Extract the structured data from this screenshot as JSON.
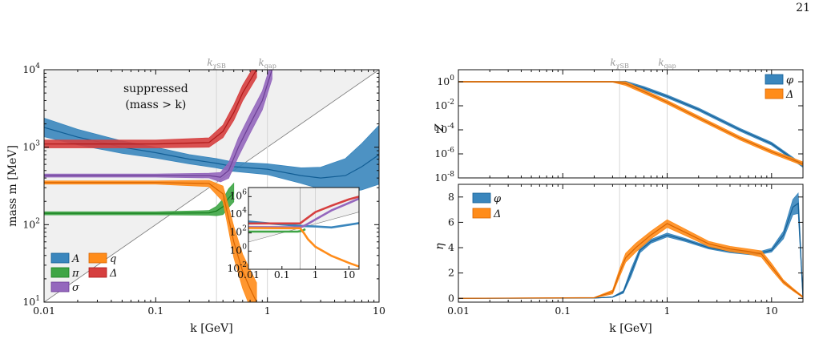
{
  "page": {
    "number": "21"
  },
  "colors": {
    "A": "#3a86bd",
    "pi": "#3ea545",
    "sigma": "#9467bd",
    "q": "#ff8c1a",
    "Delta": "#d63f3f",
    "phi": "#3a86bd",
    "suppressed_region": "#f0f0f0",
    "ref_line": "#c8c8c8",
    "scale_line": "#d6d6d6"
  },
  "chart_data": [
    {
      "id": "mass-panel",
      "type": "line",
      "xscale": "log",
      "yscale": "log",
      "xlim": [
        0.01,
        10
      ],
      "ylim": [
        10,
        10000
      ],
      "xlabel": "k [GeV]",
      "ylabel": "mass m [MeV]",
      "xticks": [
        "0.01",
        "0.1",
        "1",
        "10"
      ],
      "yticks": [
        "10^1",
        "10^2",
        "10^3",
        "10^4"
      ],
      "scale_markers": [
        {
          "label": "k_χSB",
          "x": 0.35
        },
        {
          "label": "k_gap",
          "x": 1.0
        }
      ],
      "annotation": {
        "line1": "suppressed",
        "line2": "(mass > k)"
      },
      "shaded_region": "mass > k",
      "legend": {
        "location": "lower-left",
        "entries": [
          "A",
          "π",
          "σ",
          "q",
          "Δ"
        ]
      },
      "series": [
        {
          "name": "A",
          "color_key": "A",
          "x": [
            0.01,
            0.02,
            0.05,
            0.1,
            0.2,
            0.35,
            0.5,
            1.0,
            2.0,
            3.0,
            5.0,
            7.0,
            10.0
          ],
          "y": [
            1800,
            1350,
            1000,
            850,
            700,
            620,
            560,
            520,
            430,
            400,
            430,
            560,
            800
          ],
          "yerr": [
            0.12,
            0.1,
            0.08,
            0.07,
            0.06,
            0.06,
            0.06,
            0.07,
            0.1,
            0.14,
            0.22,
            0.3,
            0.38
          ]
        },
        {
          "name": "π",
          "color_key": "pi",
          "x": [
            0.01,
            0.1,
            0.3,
            0.35,
            0.4,
            0.45,
            0.5
          ],
          "y": [
            140,
            140,
            142,
            150,
            170,
            220,
            260
          ],
          "yerr": [
            0.02,
            0.02,
            0.03,
            0.06,
            0.1,
            0.12,
            0.12
          ]
        },
        {
          "name": "σ",
          "color_key": "sigma",
          "x": [
            0.01,
            0.1,
            0.3,
            0.38,
            0.45,
            0.55,
            0.7,
            0.9,
            1.1
          ],
          "y": [
            430,
            430,
            430,
            410,
            500,
            1000,
            2000,
            4000,
            10000
          ],
          "yerr": [
            0.02,
            0.02,
            0.03,
            0.06,
            0.1,
            0.12,
            0.12,
            0.12,
            0.12
          ]
        },
        {
          "name": "q",
          "color_key": "q",
          "x": [
            0.01,
            0.1,
            0.3,
            0.4,
            0.45,
            0.5,
            0.6,
            0.7,
            0.8
          ],
          "y": [
            350,
            350,
            340,
            250,
            120,
            60,
            25,
            15,
            10
          ],
          "yerr": [
            0.02,
            0.02,
            0.04,
            0.1,
            0.15,
            0.2,
            0.22,
            0.24,
            0.25
          ]
        },
        {
          "name": "Δ",
          "color_key": "Delta",
          "x": [
            0.01,
            0.1,
            0.3,
            0.4,
            0.5,
            0.6,
            0.8
          ],
          "y": [
            1100,
            1100,
            1150,
            1600,
            2800,
            5000,
            10000
          ],
          "yerr": [
            0.05,
            0.05,
            0.06,
            0.08,
            0.1,
            0.1,
            0.1
          ]
        }
      ]
    },
    {
      "id": "mass-inset",
      "type": "line",
      "xscale": "log",
      "yscale": "log",
      "xlim": [
        0.01,
        20
      ],
      "ylim": [
        0.01,
        10000000
      ],
      "xticks": [
        "0.01",
        "0.1",
        "1",
        "10"
      ],
      "yticks": [
        "10^-2",
        "10^0",
        "10^2",
        "10^4",
        "10^6"
      ],
      "series": [
        {
          "name": "A",
          "color_key": "A",
          "x": [
            0.01,
            0.1,
            0.5,
            1,
            3,
            10,
            20
          ],
          "y": [
            1800,
            850,
            560,
            520,
            400,
            800,
            1200
          ]
        },
        {
          "name": "π",
          "color_key": "pi",
          "x": [
            0.01,
            0.3,
            0.4,
            0.5
          ],
          "y": [
            140,
            142,
            170,
            260
          ]
        },
        {
          "name": "σ",
          "color_key": "sigma",
          "x": [
            0.01,
            0.35,
            0.5,
            1,
            3,
            10,
            20
          ],
          "y": [
            430,
            420,
            700,
            3000,
            30000,
            200000,
            600000
          ]
        },
        {
          "name": "q",
          "color_key": "q",
          "x": [
            0.01,
            0.35,
            0.45,
            0.6,
            1,
            3,
            10,
            20
          ],
          "y": [
            350,
            330,
            100,
            20,
            3,
            0.3,
            0.05,
            0.02
          ]
        },
        {
          "name": "Δ",
          "color_key": "Delta",
          "x": [
            0.01,
            0.35,
            0.6,
            1,
            3,
            10,
            20
          ],
          "y": [
            1100,
            1150,
            5000,
            20000,
            100000,
            500000,
            1000000
          ]
        }
      ]
    },
    {
      "id": "Z-panel",
      "type": "line",
      "xscale": "log",
      "yscale": "log",
      "xlim": [
        0.01,
        20
      ],
      "ylim": [
        1e-08,
        10
      ],
      "ylabel": "Z",
      "xticks": [],
      "yticks": [
        "10^0",
        "10^-2",
        "10^-4",
        "10^-6",
        "10^-8"
      ],
      "scale_markers": [
        {
          "label": "k_χSB",
          "x": 0.35
        },
        {
          "label": "k_gap",
          "x": 1.0
        }
      ],
      "legend": {
        "location": "top-right",
        "entries": [
          "φ",
          "Δ"
        ]
      },
      "series": [
        {
          "name": "φ",
          "color_key": "phi",
          "x": [
            0.01,
            0.1,
            0.3,
            0.4,
            0.6,
            1,
            2,
            5,
            10,
            20
          ],
          "y": [
            1,
            1,
            1,
            0.85,
            0.3,
            0.06,
            0.005,
            0.0001,
            7e-06,
            1e-07
          ]
        },
        {
          "name": "Δ",
          "color_key": "q",
          "x": [
            0.01,
            0.1,
            0.3,
            0.4,
            0.6,
            1,
            2,
            5,
            10,
            20
          ],
          "y": [
            1,
            1,
            1,
            0.7,
            0.15,
            0.02,
            0.001,
            2e-05,
            1.5e-06,
            1.5e-07
          ]
        }
      ]
    },
    {
      "id": "eta-panel",
      "type": "line",
      "xscale": "log",
      "yscale": "linear",
      "xlim": [
        0.01,
        20
      ],
      "ylim": [
        -0.3,
        9
      ],
      "xlabel": "k [GeV]",
      "ylabel": "η",
      "xticks": [
        "0.01",
        "0.1",
        "1",
        "10"
      ],
      "yticks": [
        "0",
        "2",
        "4",
        "6",
        "8"
      ],
      "legend": {
        "location": "top-left",
        "entries": [
          "φ",
          "Δ"
        ]
      },
      "series": [
        {
          "name": "φ",
          "color_key": "phi",
          "x": [
            0.01,
            0.2,
            0.3,
            0.38,
            0.45,
            0.55,
            0.7,
            1.0,
            1.5,
            2.5,
            4,
            7,
            10,
            13,
            16,
            18,
            20
          ],
          "y": [
            0,
            0.02,
            0.1,
            0.5,
            2.0,
            3.8,
            4.5,
            5.0,
            4.6,
            4.0,
            3.7,
            3.5,
            3.8,
            5.0,
            7.2,
            7.5,
            0
          ],
          "yerr": [
            0.0,
            0.0,
            0.02,
            0.1,
            0.3,
            0.2,
            0.15,
            0.15,
            0.12,
            0.1,
            0.1,
            0.1,
            0.15,
            0.3,
            0.6,
            0.8,
            0.0
          ]
        },
        {
          "name": "Δ",
          "color_key": "q",
          "x": [
            0.01,
            0.2,
            0.3,
            0.35,
            0.4,
            0.5,
            0.7,
            1.0,
            1.5,
            2.5,
            4,
            6,
            8,
            10,
            13,
            16,
            20
          ],
          "y": [
            0,
            0.05,
            0.5,
            2.0,
            3.2,
            4.0,
            5.0,
            5.9,
            5.2,
            4.3,
            3.9,
            3.7,
            3.5,
            2.5,
            1.3,
            0.7,
            0.1
          ],
          "yerr": [
            0.0,
            0.02,
            0.15,
            0.3,
            0.35,
            0.35,
            0.3,
            0.3,
            0.25,
            0.2,
            0.2,
            0.2,
            0.25,
            0.25,
            0.15,
            0.1,
            0.05
          ]
        }
      ]
    }
  ]
}
